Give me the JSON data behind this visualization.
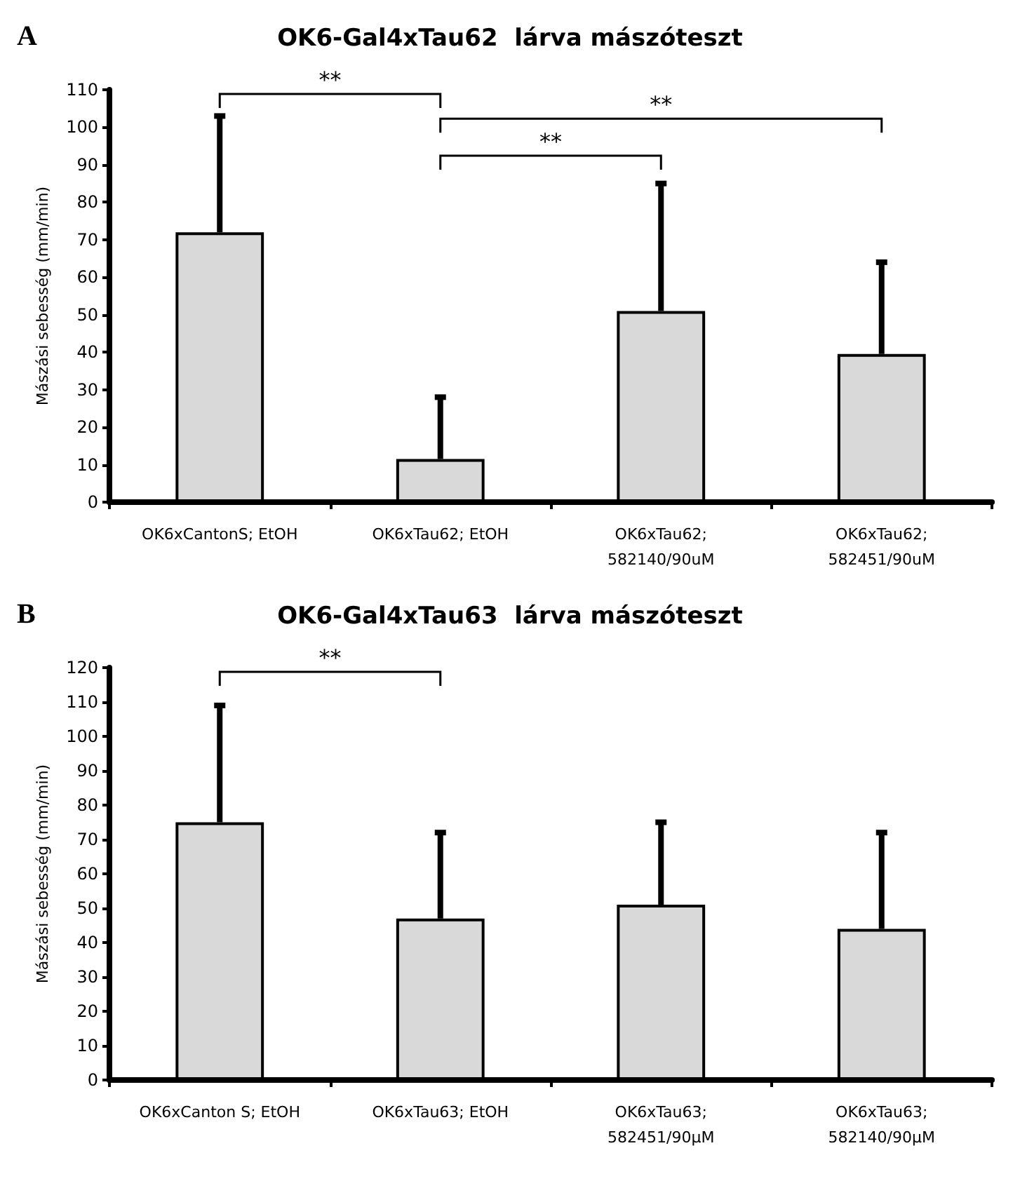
{
  "chart_data": [
    {
      "type": "bar",
      "title": "OK6-Gal4xTau62  lárva mászóteszt",
      "ylabel": "Mászási sebesség (mm/min)",
      "categories": [
        "OK6xCantonS; EtOH",
        "OK6xTau62; EtOH",
        "OK6xTau62;\n582140/90uM",
        "OK6xTau62;\n582451/90uM"
      ],
      "values": [
        72,
        11.5,
        51,
        39.5
      ],
      "color": "#d9d9d9",
      "errors": [
        [
          72,
          103
        ],
        [
          11.5,
          28
        ],
        [
          51,
          85
        ],
        [
          39.5,
          64
        ]
      ],
      "ylim": [
        0,
        110
      ],
      "yticks": [
        0,
        10,
        20,
        30,
        40,
        50,
        60,
        70,
        80,
        90,
        100,
        110
      ],
      "grid": false,
      "annotations": [
        "A",
        "**",
        "**",
        "**"
      ]
    },
    {
      "type": "bar",
      "title": "OK6-Gal4xTau63  lárva mászóteszt",
      "ylabel": "Mászási sebesség (mm/min)",
      "categories": [
        "OK6xCanton S; EtOH",
        "OK6xTau63; EtOH",
        "OK6xTau63;\n582451/90µM",
        "OK6xTau63;\n582140/90µM"
      ],
      "values": [
        75,
        47,
        51,
        44
      ],
      "color": "#d9d9d9",
      "errors": [
        [
          75,
          109
        ],
        [
          47,
          72
        ],
        [
          51,
          75
        ],
        [
          44,
          72
        ]
      ],
      "ylim": [
        0,
        120
      ],
      "yticks": [
        0,
        10,
        20,
        30,
        40,
        50,
        60,
        70,
        80,
        90,
        100,
        110,
        120
      ],
      "grid": false,
      "annotations": [
        "B",
        "**"
      ]
    }
  ]
}
